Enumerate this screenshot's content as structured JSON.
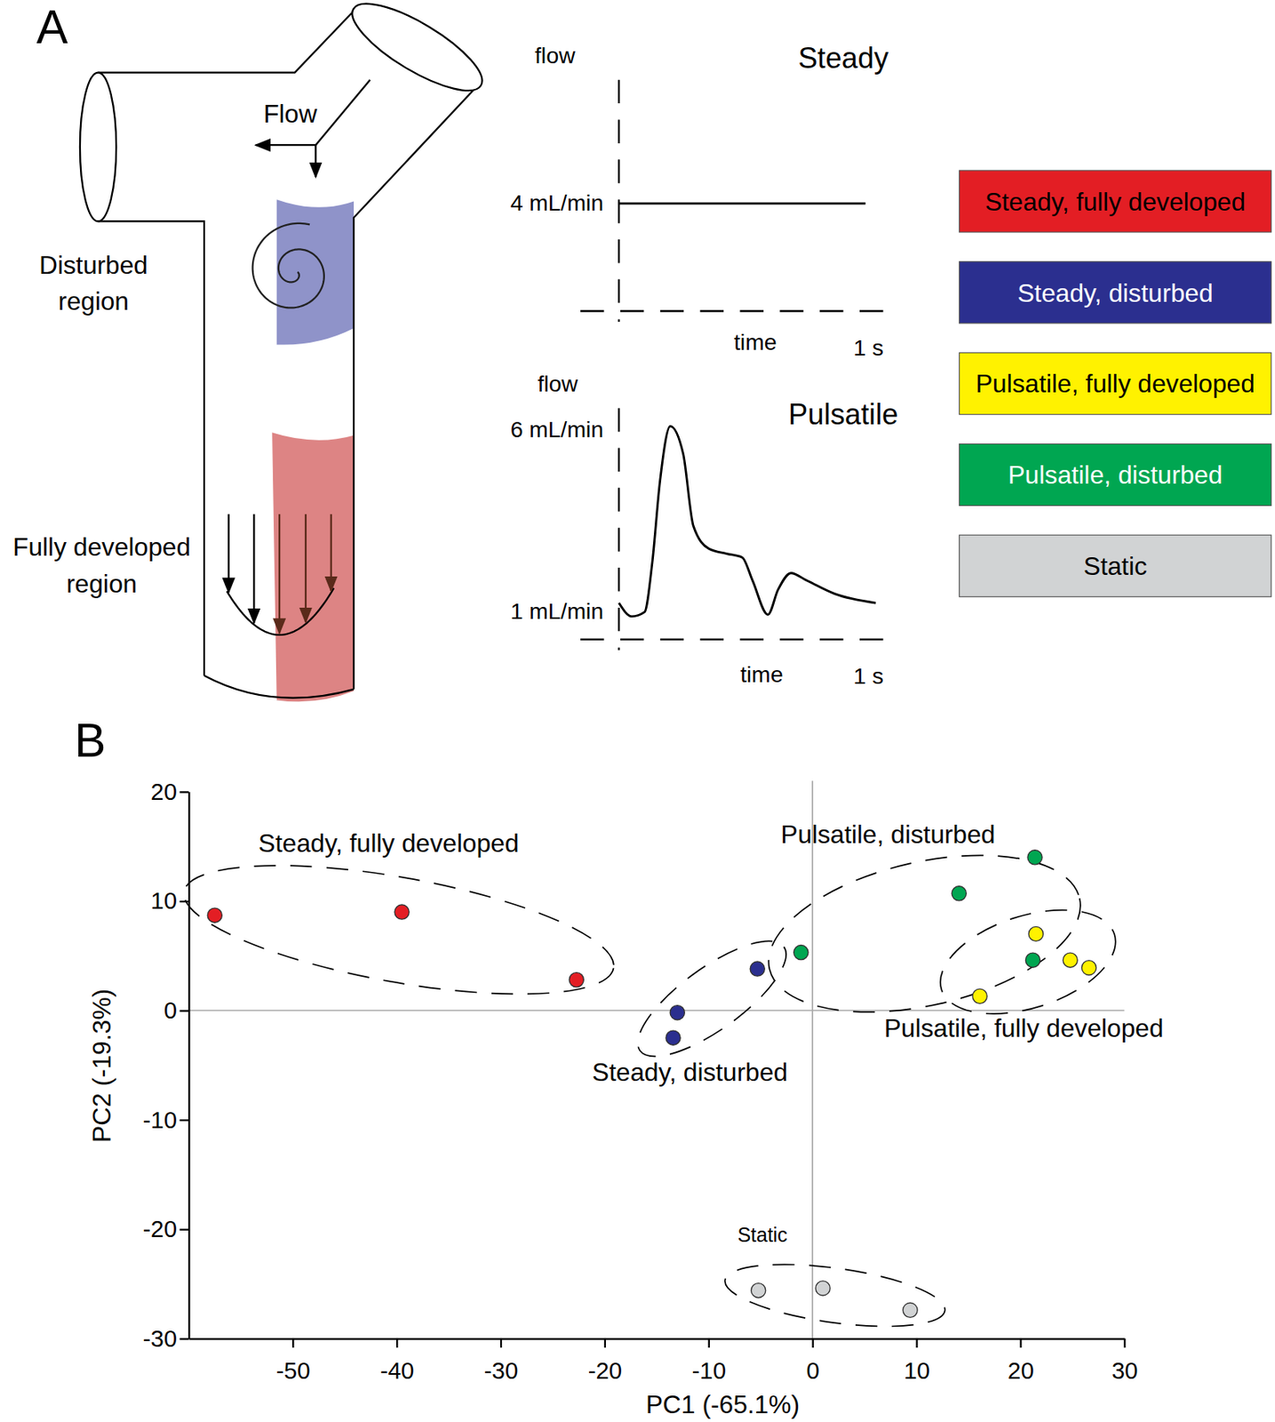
{
  "panel_labels": [
    "A",
    "B"
  ],
  "diagram": {
    "flow_label": "Flow",
    "disturbed_region": "Disturbed region",
    "fully_developed_region": "Fully developed region"
  },
  "chart_data": [
    {
      "type": "line",
      "title": "Steady",
      "y_label": "flow",
      "x_label": "time",
      "x": [
        0,
        0.96
      ],
      "values": [
        4,
        4
      ],
      "xlim": [
        -0.15,
        1.05
      ],
      "ylim": [
        0,
        8.6
      ],
      "xticks": [
        {
          "value": 1,
          "label": "1 s"
        }
      ],
      "yticks": [
        {
          "value": 4,
          "label": "4 mL/min"
        }
      ],
      "color": "#000000",
      "line_style": "solid"
    },
    {
      "type": "line",
      "title": "Pulsatile",
      "y_label": "flow",
      "x_label": "time",
      "x": [
        0,
        0.05,
        0.1,
        0.13,
        0.16,
        0.2,
        0.25,
        0.29,
        0.35,
        0.42,
        0.48,
        0.52,
        0.58,
        0.62,
        0.67,
        0.73,
        0.84,
        1.0
      ],
      "values": [
        1.25,
        0.88,
        1.0,
        2.37,
        4.6,
        6.1,
        5.35,
        3.36,
        2.74,
        2.6,
        2.5,
        1.87,
        0.93,
        1.62,
        2.07,
        1.87,
        1.5,
        1.25
      ],
      "xlim": [
        -0.15,
        1.05
      ],
      "ylim": [
        0.25,
        6.6
      ],
      "xticks": [
        {
          "value": 1,
          "label": "1 s"
        }
      ],
      "yticks": [
        {
          "value": 6,
          "label": "6 mL/min"
        },
        {
          "value": 1,
          "label": "1 mL/min"
        }
      ],
      "color": "#000000",
      "line_style": "solid"
    },
    {
      "type": "scatter",
      "x_label": "PC1 (-65.1%)",
      "y_label": "PC2 (-19.3%)",
      "xlim": [
        -60,
        30
      ],
      "ylim": [
        -30,
        20
      ],
      "xticks": [
        -50,
        -40,
        -30,
        -20,
        -10,
        0,
        10,
        20,
        30
      ],
      "yticks": [
        -30,
        -20,
        -10,
        0,
        10,
        20
      ],
      "reference_lines": [
        {
          "axis": "x",
          "value": 0
        },
        {
          "axis": "y",
          "value": 0
        }
      ],
      "legend": "top-right",
      "marker": "circle",
      "series": [
        {
          "name": "Steady, fully developed",
          "color": "#e31e24",
          "x": [
            -57.5,
            -39.5,
            -22.7
          ],
          "values": [
            8.7,
            9.0,
            2.8
          ]
        },
        {
          "name": "Steady, disturbed",
          "color": "#2b2f8f",
          "x": [
            -5.3,
            -13.0,
            -13.4
          ],
          "values": [
            3.8,
            -0.2,
            -2.5
          ]
        },
        {
          "name": "Pulsatile, fully developed",
          "color": "#fff200",
          "x": [
            21.5,
            24.8,
            26.6,
            16.1
          ],
          "values": [
            7.0,
            4.6,
            3.9,
            1.3
          ]
        },
        {
          "name": "Pulsatile, disturbed",
          "color": "#00a651",
          "x": [
            -1.1,
            14.1,
            21.4,
            21.2
          ],
          "values": [
            5.3,
            10.7,
            14.0,
            4.6
          ]
        },
        {
          "name": "Static",
          "color": "#d1d3d4",
          "x": [
            -5.2,
            1.0,
            9.4
          ],
          "values": [
            -25.6,
            -25.4,
            -27.4
          ]
        }
      ]
    }
  ]
}
